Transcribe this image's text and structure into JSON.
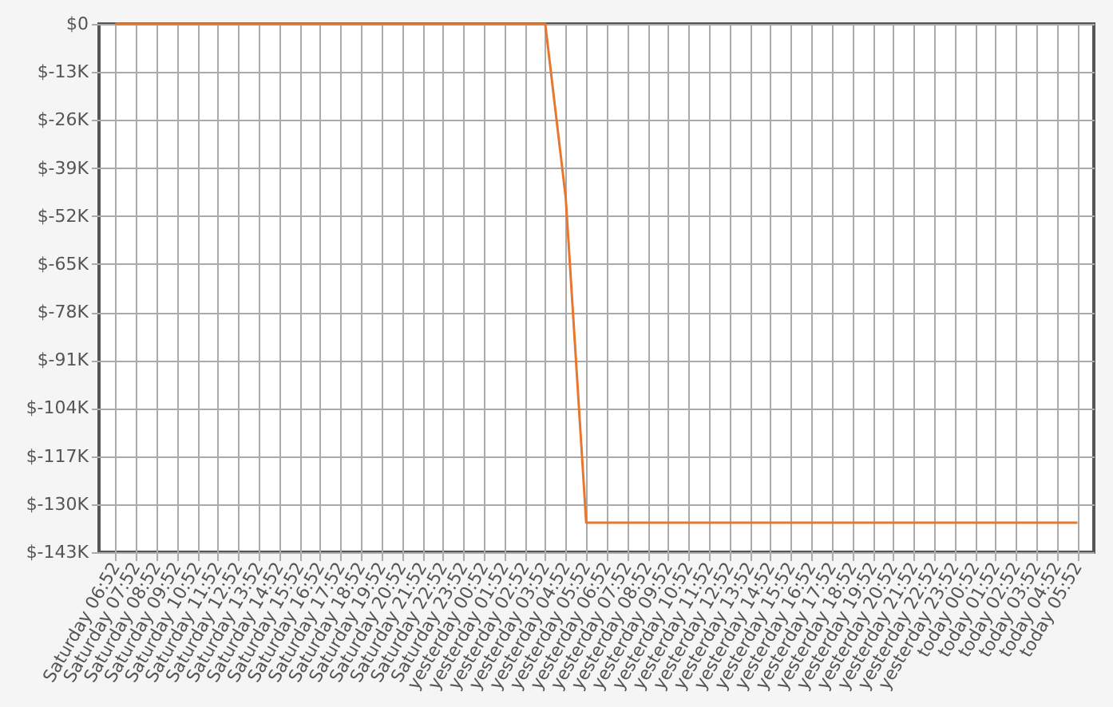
{
  "chart_data": {
    "type": "line",
    "categories": [
      "Saturday 06:52",
      "Saturday 07:52",
      "Saturday 08:52",
      "Saturday 09:52",
      "Saturday 10:52",
      "Saturday 11:52",
      "Saturday 12:52",
      "Saturday 13:52",
      "Saturday 14:52",
      "Saturday 15:52",
      "Saturday 16:52",
      "Saturday 17:52",
      "Saturday 18:52",
      "Saturday 19:52",
      "Saturday 20:52",
      "Saturday 21:52",
      "Saturday 22:52",
      "Saturday 23:52",
      "yesterday 00:52",
      "yesterday 01:52",
      "yesterday 02:52",
      "yesterday 03:52",
      "yesterday 04:52",
      "yesterday 05:52",
      "yesterday 06:52",
      "yesterday 07:52",
      "yesterday 08:52",
      "yesterday 09:52",
      "yesterday 10:52",
      "yesterday 11:52",
      "yesterday 12:52",
      "yesterday 13:52",
      "yesterday 14:52",
      "yesterday 15:52",
      "yesterday 16:52",
      "yesterday 17:52",
      "yesterday 18:52",
      "yesterday 19:52",
      "yesterday 20:52",
      "yesterday 21:52",
      "yesterday 22:52",
      "yesterday 23:52",
      "today 00:52",
      "today 01:52",
      "today 02:52",
      "today 03:52",
      "today 04:52",
      "today 05:52"
    ],
    "series": [
      {
        "color": "#e8772e",
        "values": [
          0,
          0,
          0,
          0,
          0,
          0,
          0,
          0,
          0,
          0,
          0,
          0,
          0,
          0,
          0,
          0,
          0,
          0,
          0,
          0,
          0,
          0,
          -47000,
          -135000,
          -135000,
          -135000,
          -135000,
          -135000,
          -135000,
          -135000,
          -135000,
          -135000,
          -135000,
          -135000,
          -135000,
          -135000,
          -135000,
          -135000,
          -135000,
          -135000,
          -135000,
          -135000,
          -135000,
          -135000,
          -135000,
          -135000,
          -135000,
          -135000
        ]
      }
    ],
    "ylim": [
      -143000,
      0
    ],
    "yticks": [
      {
        "value": 0,
        "label": "$0"
      },
      {
        "value": -13000,
        "label": "$-13K"
      },
      {
        "value": -26000,
        "label": "$-26K"
      },
      {
        "value": -39000,
        "label": "$-39K"
      },
      {
        "value": -52000,
        "label": "$-52K"
      },
      {
        "value": -65000,
        "label": "$-65K"
      },
      {
        "value": -78000,
        "label": "$-78K"
      },
      {
        "value": -91000,
        "label": "$-91K"
      },
      {
        "value": -104000,
        "label": "$-104K"
      },
      {
        "value": -117000,
        "label": "$-117K"
      },
      {
        "value": -130000,
        "label": "$-130K"
      },
      {
        "value": -143000,
        "label": "$-143K"
      }
    ],
    "grid": true,
    "marker": "none",
    "line_style": "solid"
  }
}
